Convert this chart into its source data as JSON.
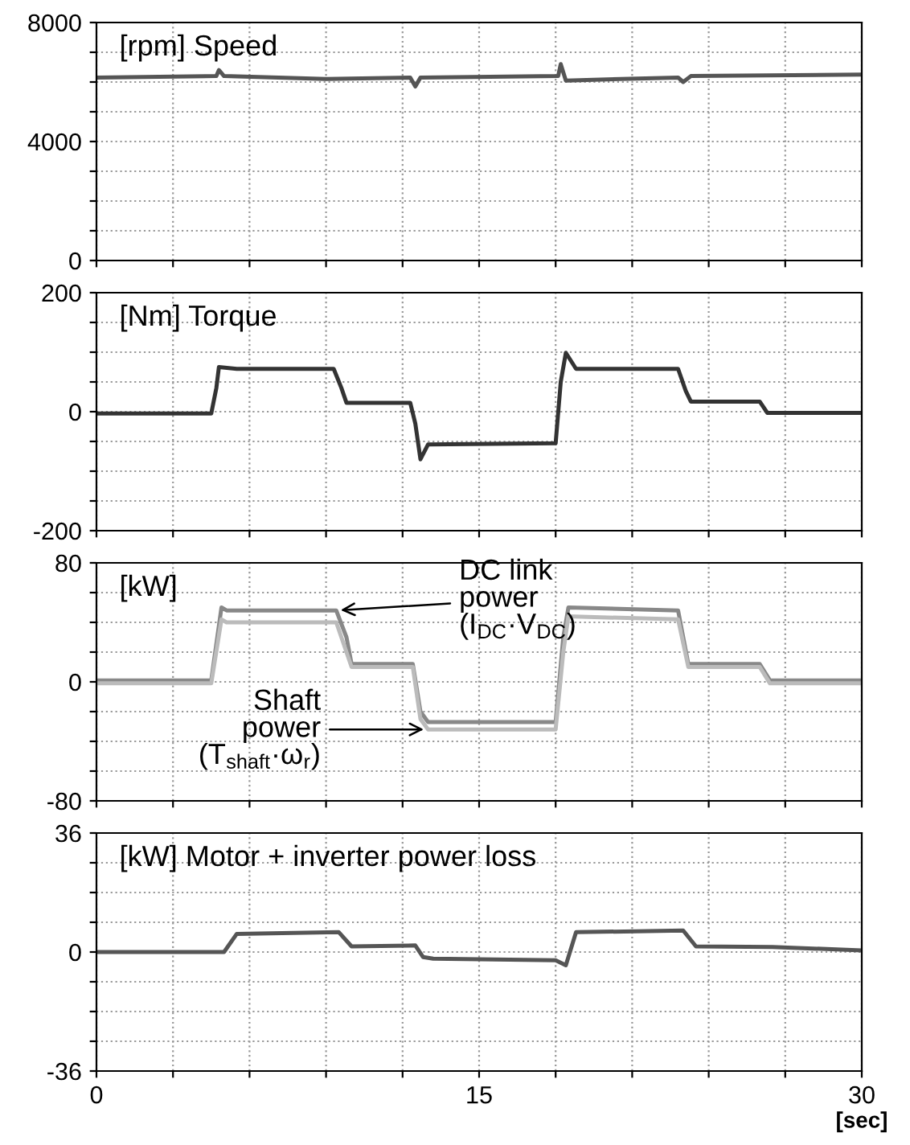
{
  "chart_data": [
    {
      "type": "line",
      "title": "[rpm] Speed",
      "xlim": [
        0,
        30
      ],
      "ylim": [
        0,
        8000
      ],
      "xticks": [
        {
          "value": 0,
          "label": null
        },
        {
          "value": 3,
          "label": null
        },
        {
          "value": 6,
          "label": null
        },
        {
          "value": 9,
          "label": null
        },
        {
          "value": 12,
          "label": null
        },
        {
          "value": 15,
          "label": null
        },
        {
          "value": 18,
          "label": null
        },
        {
          "value": 21,
          "label": null
        },
        {
          "value": 24,
          "label": null
        },
        {
          "value": 27,
          "label": null
        },
        {
          "value": 30,
          "label": null
        }
      ],
      "yticks": [
        0,
        {
          "value": 1000,
          "label": null
        },
        {
          "value": 2000,
          "label": null
        },
        {
          "value": 3000,
          "label": null
        },
        4000,
        {
          "value": 5000,
          "label": null
        },
        {
          "value": 6000,
          "label": null
        },
        {
          "value": 7000,
          "label": null
        },
        8000
      ],
      "tick_labels": "y",
      "grid": true,
      "legend": false,
      "series": [
        {
          "color": "#555555",
          "x": [
            0,
            4.7,
            4.8,
            5,
            9,
            12.3,
            12.5,
            12.7,
            18.1,
            18.2,
            18.4,
            22.8,
            23.0,
            23.3,
            30
          ],
          "values": [
            6150,
            6200,
            6400,
            6200,
            6100,
            6150,
            5850,
            6150,
            6200,
            6600,
            6050,
            6150,
            6000,
            6200,
            6250
          ]
        }
      ]
    },
    {
      "type": "line",
      "title": "[Nm] Torque",
      "xlim": [
        0,
        30
      ],
      "ylim": [
        -200,
        200
      ],
      "xticks": [
        {
          "value": 0,
          "label": null
        },
        {
          "value": 3,
          "label": null
        },
        {
          "value": 6,
          "label": null
        },
        {
          "value": 9,
          "label": null
        },
        {
          "value": 12,
          "label": null
        },
        {
          "value": 15,
          "label": null
        },
        {
          "value": 18,
          "label": null
        },
        {
          "value": 21,
          "label": null
        },
        {
          "value": 24,
          "label": null
        },
        {
          "value": 27,
          "label": null
        },
        {
          "value": 30,
          "label": null
        }
      ],
      "yticks": [
        -200,
        {
          "value": -150,
          "label": null
        },
        {
          "value": -100,
          "label": null
        },
        {
          "value": -50,
          "label": null
        },
        0,
        {
          "value": 50,
          "label": null
        },
        {
          "value": 100,
          "label": null
        },
        {
          "value": 150,
          "label": null
        },
        200
      ],
      "tick_labels": "y",
      "grid": true,
      "legend": false,
      "series": [
        {
          "color": "#333333",
          "x": [
            0,
            4.5,
            4.7,
            4.8,
            5.5,
            9.3,
            9.6,
            9.8,
            12.3,
            12.5,
            12.7,
            13.0,
            18.0,
            18.2,
            18.4,
            18.8,
            22.8,
            23.1,
            23.3,
            26.0,
            26.3,
            30
          ],
          "values": [
            -3,
            -3,
            40,
            75,
            72,
            72,
            40,
            15,
            15,
            -20,
            -80,
            -55,
            -53,
            50,
            99,
            72,
            72,
            35,
            17,
            17,
            -2,
            -2
          ]
        }
      ]
    },
    {
      "type": "line",
      "title": "[kW]",
      "xlim": [
        0,
        30
      ],
      "ylim": [
        -80,
        80
      ],
      "xticks": [
        {
          "value": 0,
          "label": null
        },
        {
          "value": 3,
          "label": null
        },
        {
          "value": 6,
          "label": null
        },
        {
          "value": 9,
          "label": null
        },
        {
          "value": 12,
          "label": null
        },
        {
          "value": 15,
          "label": null
        },
        {
          "value": 18,
          "label": null
        },
        {
          "value": 21,
          "label": null
        },
        {
          "value": 24,
          "label": null
        },
        {
          "value": 27,
          "label": null
        },
        {
          "value": 30,
          "label": null
        }
      ],
      "yticks": [
        -80,
        {
          "value": -60,
          "label": null
        },
        {
          "value": -40,
          "label": null
        },
        {
          "value": -20,
          "label": null
        },
        0,
        {
          "value": 20,
          "label": null
        },
        {
          "value": 40,
          "label": null
        },
        {
          "value": 60,
          "label": null
        },
        80
      ],
      "tick_labels": "y",
      "grid": true,
      "legend": false,
      "annotations": [
        {
          "text": "DC link\npower\n(I$_{DC}$·V$_{DC}$)",
          "x": 9.4,
          "y": 48
        },
        {
          "text": "Shaft\npower\n(T$_{shaft}$·ω$_{r}$)",
          "x": 13.0,
          "y": -32
        }
      ],
      "series": [
        {
          "color": "#888888",
          "x": [
            0,
            4.5,
            4.9,
            5.1,
            9.4,
            9.8,
            10.0,
            12.4,
            12.7,
            13.0,
            18.0,
            18.3,
            18.5,
            22.8,
            23.2,
            26.0,
            26.4,
            30
          ],
          "values": [
            1,
            1,
            50,
            48,
            48,
            30,
            12,
            12,
            -20,
            -27,
            -27,
            30,
            50,
            48,
            12,
            12,
            1,
            1
          ]
        },
        {
          "color": "#bbbbbb",
          "x": [
            0,
            4.5,
            4.9,
            5.1,
            9.4,
            9.8,
            10.0,
            12.4,
            12.7,
            13.0,
            18.0,
            18.3,
            18.5,
            22.8,
            23.2,
            26.0,
            26.4,
            30
          ],
          "values": [
            -1,
            -1,
            42,
            40,
            40,
            20,
            10,
            10,
            -25,
            -32,
            -32,
            20,
            44,
            42,
            10,
            10,
            -1,
            -1
          ]
        }
      ]
    },
    {
      "type": "line",
      "title": "[kW] Motor + inverter power loss",
      "xlabel": "[sec]",
      "xlim": [
        0,
        30
      ],
      "ylim": [
        -36,
        36
      ],
      "xticks": [
        0,
        {
          "value": 3,
          "label": null
        },
        {
          "value": 6,
          "label": null
        },
        {
          "value": 9,
          "label": null
        },
        {
          "value": 12,
          "label": null
        },
        15,
        {
          "value": 18,
          "label": null
        },
        {
          "value": 21,
          "label": null
        },
        {
          "value": 24,
          "label": null
        },
        {
          "value": 27,
          "label": null
        },
        30
      ],
      "yticks": [
        -36,
        {
          "value": -27,
          "label": null
        },
        {
          "value": -18,
          "label": null
        },
        {
          "value": -9,
          "label": null
        },
        0,
        {
          "value": 9,
          "label": null
        },
        {
          "value": 18,
          "label": null
        },
        {
          "value": 27,
          "label": null
        },
        36
      ],
      "grid": true,
      "legend": false,
      "series": [
        {
          "color": "#555555",
          "x": [
            0,
            5.0,
            5.5,
            9.5,
            10.0,
            12.5,
            12.8,
            13.2,
            18.0,
            18.4,
            18.8,
            23.0,
            23.5,
            26.5,
            30
          ],
          "values": [
            0,
            0,
            5.5,
            6,
            1.7,
            2,
            -1.5,
            -2,
            -2.5,
            -4,
            6,
            6.5,
            1.7,
            1.5,
            0.5
          ]
        }
      ]
    }
  ]
}
